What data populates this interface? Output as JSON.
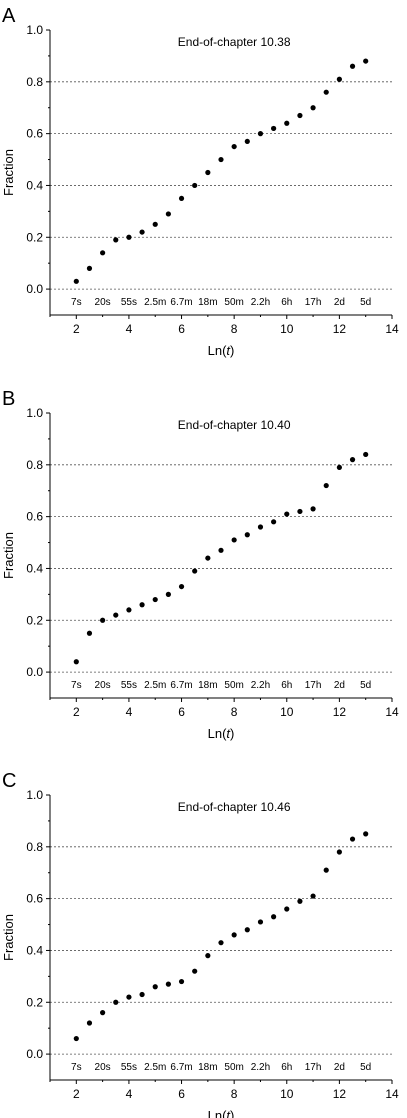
{
  "figure": {
    "panels": [
      {
        "letter": "A",
        "title": "End-of-chapter 10.38"
      },
      {
        "letter": "B",
        "title": "End-of-chapter 10.40"
      },
      {
        "letter": "C",
        "title": "End-of-chapter 10.46"
      }
    ],
    "ylabel": "Fraction",
    "xlabel_prefix": "Ln(",
    "xlabel_var": "t",
    "xlabel_suffix": ")",
    "time_labels": [
      "7s",
      "20s",
      "55s",
      "2.5m",
      "6.7m",
      "18m",
      "50m",
      "2.2h",
      "6h",
      "17h",
      "2d",
      "5d"
    ],
    "x_tick_labels": [
      "2",
      "4",
      "6",
      "8",
      "10",
      "12",
      "14"
    ],
    "y_tick_labels": [
      "0.0",
      "0.2",
      "0.4",
      "0.6",
      "0.8",
      "1.0"
    ],
    "colors": {
      "points": "#000000",
      "axes": "#000000",
      "grid": "#555555"
    }
  },
  "chart_data": [
    {
      "type": "scatter",
      "title": "End-of-chapter 10.38",
      "xlabel": "Ln(t)",
      "ylabel": "Fraction",
      "xlim": [
        1,
        14
      ],
      "ylim": [
        -0.1,
        1.0
      ],
      "xticks": [
        2,
        4,
        6,
        8,
        10,
        12,
        14
      ],
      "yticks": [
        0.0,
        0.2,
        0.4,
        0.6,
        0.8,
        1.0
      ],
      "grid": "horizontal dashed at 0.0, 0.2, 0.4, 0.6, 0.8",
      "x": [
        2,
        2.5,
        3,
        3.5,
        4,
        4.5,
        5,
        5.5,
        6,
        6.5,
        7,
        7.5,
        8,
        8.5,
        9,
        9.5,
        10,
        10.5,
        11,
        11.5,
        12,
        12.5,
        13
      ],
      "y": [
        0.03,
        0.08,
        0.14,
        0.19,
        0.2,
        0.22,
        0.25,
        0.29,
        0.35,
        0.4,
        0.45,
        0.5,
        0.55,
        0.57,
        0.6,
        0.62,
        0.64,
        0.67,
        0.7,
        0.76,
        0.81,
        0.86,
        0.88
      ]
    },
    {
      "type": "scatter",
      "title": "End-of-chapter 10.40",
      "xlabel": "Ln(t)",
      "ylabel": "Fraction",
      "xlim": [
        1,
        14
      ],
      "ylim": [
        -0.1,
        1.0
      ],
      "xticks": [
        2,
        4,
        6,
        8,
        10,
        12,
        14
      ],
      "yticks": [
        0.0,
        0.2,
        0.4,
        0.6,
        0.8,
        1.0
      ],
      "grid": "horizontal dashed at 0.0, 0.2, 0.4, 0.6, 0.8",
      "x": [
        2,
        2.5,
        3,
        3.5,
        4,
        4.5,
        5,
        5.5,
        6,
        6.5,
        7,
        7.5,
        8,
        8.5,
        9,
        9.5,
        10,
        10.5,
        11,
        11.5,
        12,
        12.5,
        13
      ],
      "y": [
        0.04,
        0.15,
        0.2,
        0.22,
        0.24,
        0.26,
        0.28,
        0.3,
        0.33,
        0.39,
        0.44,
        0.47,
        0.51,
        0.53,
        0.56,
        0.58,
        0.61,
        0.62,
        0.63,
        0.72,
        0.79,
        0.82,
        0.84
      ]
    },
    {
      "type": "scatter",
      "title": "End-of-chapter 10.46",
      "xlabel": "Ln(t)",
      "ylabel": "Fraction",
      "xlim": [
        1,
        14
      ],
      "ylim": [
        -0.1,
        1.0
      ],
      "xticks": [
        2,
        4,
        6,
        8,
        10,
        12,
        14
      ],
      "yticks": [
        0.0,
        0.2,
        0.4,
        0.6,
        0.8,
        1.0
      ],
      "grid": "horizontal dashed at 0.0, 0.2, 0.4, 0.6, 0.8",
      "x": [
        2,
        2.5,
        3,
        3.5,
        4,
        4.5,
        5,
        5.5,
        6,
        6.5,
        7,
        7.5,
        8,
        8.5,
        9,
        9.5,
        10,
        10.5,
        11,
        11.5,
        12,
        12.5,
        13
      ],
      "y": [
        0.06,
        0.12,
        0.16,
        0.2,
        0.22,
        0.23,
        0.26,
        0.27,
        0.28,
        0.32,
        0.38,
        0.43,
        0.46,
        0.48,
        0.51,
        0.53,
        0.56,
        0.59,
        0.61,
        0.71,
        0.78,
        0.83,
        0.85
      ]
    }
  ]
}
